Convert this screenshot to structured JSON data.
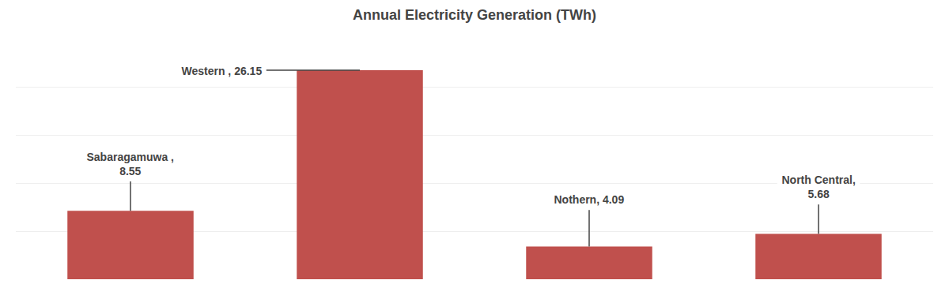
{
  "chart_data": {
    "type": "bar",
    "title": "Annual Electricity Generation (TWh)",
    "categories": [
      "Sabaragamuwa",
      "Western",
      "Nothern",
      "North Central"
    ],
    "values": [
      8.55,
      26.15,
      4.09,
      5.68
    ],
    "color": "#c0504d",
    "ylim": [
      0,
      30
    ],
    "yticks": [
      0,
      6,
      12,
      18,
      24,
      30
    ],
    "grid": true,
    "tick_labels": false,
    "annotations": [
      "Sabaragamuwa ,\n8.55",
      "Western , 26.15",
      "Nothern, 4.09",
      "North Central,\n5.68"
    ]
  }
}
